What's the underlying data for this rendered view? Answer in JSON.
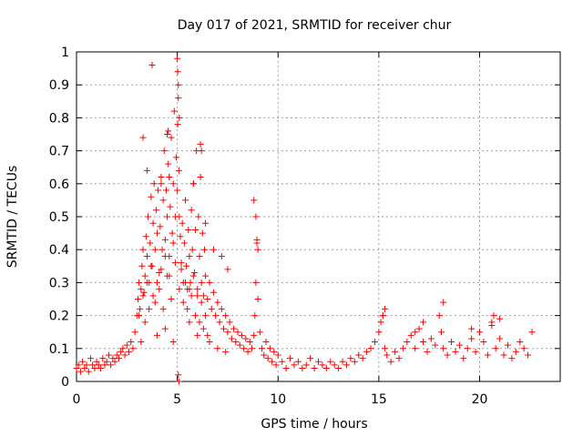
{
  "chart_data": {
    "type": "scatter",
    "title": "Day 017 of 2021, SRMTID for receiver chur",
    "xlabel": "GPS time / hours",
    "ylabel": "SRMTID / TECUs",
    "xlim": [
      0,
      24
    ],
    "ylim": [
      0,
      1
    ],
    "xticks": [
      0,
      5,
      10,
      15,
      20
    ],
    "xtick_labels": [
      "0",
      "5",
      "10",
      "15",
      "20"
    ],
    "yticks": [
      0,
      0.1,
      0.2,
      0.3,
      0.4,
      0.5,
      0.6,
      0.7,
      0.8,
      0.9,
      1
    ],
    "ytick_labels": [
      "0",
      "0.1",
      "0.2",
      "0.3",
      "0.4",
      "0.5",
      "0.6",
      "0.7",
      "0.8",
      "0.9",
      "1"
    ],
    "grid": true,
    "marker": "plus",
    "color": "#ff0000",
    "series": [
      {
        "name": "SRMTID",
        "x": [
          0.0,
          0.1,
          0.2,
          0.3,
          0.4,
          0.5,
          0.6,
          0.7,
          0.8,
          0.9,
          1.0,
          1.1,
          1.2,
          1.3,
          1.4,
          1.5,
          1.6,
          1.7,
          1.8,
          1.9,
          2.0,
          2.1,
          2.2,
          2.3,
          2.4,
          2.5,
          2.6,
          2.7,
          2.8,
          2.9,
          3.0,
          3.05,
          3.1,
          3.15,
          3.2,
          3.25,
          3.3,
          3.35,
          3.4,
          3.45,
          3.5,
          3.55,
          3.6,
          3.65,
          3.7,
          3.75,
          3.8,
          3.85,
          3.9,
          3.95,
          4.0,
          4.05,
          4.1,
          4.15,
          4.2,
          4.25,
          4.3,
          4.35,
          4.4,
          4.45,
          4.5,
          4.55,
          4.6,
          4.65,
          4.7,
          4.75,
          4.8,
          4.85,
          4.9,
          4.95,
          5.0,
          5.02,
          5.05,
          5.08,
          5.1,
          5.15,
          5.2,
          5.25,
          5.3,
          5.35,
          5.4,
          5.45,
          5.5,
          5.55,
          5.6,
          5.65,
          5.7,
          5.75,
          5.8,
          5.85,
          5.9,
          5.95,
          6.0,
          6.05,
          6.1,
          6.15,
          6.2,
          6.25,
          6.3,
          6.35,
          6.4,
          6.5,
          6.6,
          6.7,
          6.8,
          6.9,
          7.0,
          7.1,
          7.2,
          7.3,
          7.4,
          7.5,
          7.6,
          7.7,
          7.8,
          7.9,
          8.0,
          8.1,
          8.2,
          8.3,
          8.4,
          8.5,
          8.6,
          8.7,
          8.8,
          8.85,
          8.9,
          8.95,
          9.0,
          9.1,
          9.2,
          9.3,
          9.4,
          9.5,
          9.6,
          9.7,
          9.8,
          9.9,
          10.0,
          10.2,
          10.4,
          10.6,
          10.8,
          11.0,
          11.2,
          11.4,
          11.6,
          11.8,
          12.0,
          12.2,
          12.4,
          12.6,
          12.8,
          13.0,
          13.2,
          13.4,
          13.6,
          13.8,
          14.0,
          14.2,
          14.4,
          14.6,
          14.8,
          15.0,
          15.1,
          15.2,
          15.3,
          15.4,
          15.6,
          15.8,
          16.0,
          16.2,
          16.4,
          16.6,
          16.8,
          17.0,
          17.2,
          17.4,
          17.6,
          17.8,
          18.0,
          18.1,
          18.2,
          18.4,
          18.6,
          18.8,
          19.0,
          19.2,
          19.4,
          19.6,
          19.8,
          20.0,
          20.2,
          20.4,
          20.6,
          20.8,
          21.0,
          21.2,
          21.4,
          21.6,
          21.8,
          22.0,
          22.2,
          22.4,
          22.6,
          3.1,
          3.3,
          3.5,
          3.7,
          3.9,
          4.1,
          4.3,
          4.5,
          4.7,
          4.9,
          5.1,
          5.3,
          5.5,
          5.7,
          5.9,
          6.1,
          6.3,
          6.5,
          3.2,
          3.4,
          3.6,
          3.8,
          4.0,
          4.2,
          4.4,
          4.6,
          4.8,
          5.2,
          5.4,
          5.6,
          5.8,
          6.0,
          6.2,
          6.4,
          3.75,
          4.5,
          4.55,
          4.6,
          5.0,
          5.02,
          5.05,
          5.1,
          6.15,
          6.2,
          3.3,
          3.5,
          4.2,
          4.6,
          5.8,
          6.4,
          6.8,
          7.2,
          7.5,
          8.8,
          8.9,
          8.95,
          9.0,
          4.0,
          4.4,
          4.8,
          5.6,
          6.0,
          6.6,
          7.0,
          7.4,
          5.05,
          5.08,
          15.2,
          15.3,
          18.2,
          20.6,
          20.7,
          21.0,
          16.8,
          17.2,
          19.6
        ],
        "y": [
          0.04,
          0.05,
          0.03,
          0.06,
          0.04,
          0.05,
          0.03,
          0.07,
          0.05,
          0.04,
          0.06,
          0.05,
          0.04,
          0.07,
          0.05,
          0.06,
          0.08,
          0.05,
          0.07,
          0.06,
          0.08,
          0.07,
          0.09,
          0.1,
          0.08,
          0.11,
          0.09,
          0.12,
          0.1,
          0.15,
          0.2,
          0.25,
          0.3,
          0.22,
          0.28,
          0.35,
          0.4,
          0.27,
          0.32,
          0.44,
          0.38,
          0.5,
          0.3,
          0.42,
          0.56,
          0.35,
          0.48,
          0.6,
          0.4,
          0.52,
          0.45,
          0.58,
          0.33,
          0.47,
          0.62,
          0.4,
          0.55,
          0.7,
          0.43,
          0.58,
          0.5,
          0.66,
          0.38,
          0.53,
          0.74,
          0.45,
          0.6,
          0.82,
          0.5,
          0.68,
          0.58,
          0.78,
          0.9,
          0.64,
          0.5,
          0.44,
          0.36,
          0.48,
          0.3,
          0.42,
          0.55,
          0.35,
          0.28,
          0.46,
          0.38,
          0.3,
          0.52,
          0.4,
          0.6,
          0.33,
          0.46,
          0.7,
          0.28,
          0.5,
          0.38,
          0.62,
          0.3,
          0.45,
          0.26,
          0.4,
          0.32,
          0.25,
          0.3,
          0.22,
          0.27,
          0.2,
          0.24,
          0.18,
          0.22,
          0.16,
          0.2,
          0.15,
          0.18,
          0.13,
          0.16,
          0.12,
          0.15,
          0.11,
          0.14,
          0.1,
          0.13,
          0.09,
          0.12,
          0.1,
          0.14,
          0.2,
          0.3,
          0.42,
          0.25,
          0.15,
          0.1,
          0.08,
          0.12,
          0.07,
          0.1,
          0.06,
          0.09,
          0.05,
          0.08,
          0.06,
          0.04,
          0.07,
          0.05,
          0.06,
          0.04,
          0.05,
          0.07,
          0.04,
          0.06,
          0.05,
          0.04,
          0.06,
          0.05,
          0.04,
          0.06,
          0.05,
          0.07,
          0.06,
          0.08,
          0.07,
          0.09,
          0.1,
          0.12,
          0.15,
          0.18,
          0.2,
          0.1,
          0.08,
          0.06,
          0.09,
          0.07,
          0.1,
          0.12,
          0.14,
          0.1,
          0.16,
          0.12,
          0.09,
          0.13,
          0.11,
          0.2,
          0.15,
          0.1,
          0.08,
          0.12,
          0.09,
          0.11,
          0.07,
          0.1,
          0.13,
          0.09,
          0.15,
          0.12,
          0.08,
          0.17,
          0.1,
          0.13,
          0.08,
          0.11,
          0.07,
          0.09,
          0.12,
          0.1,
          0.08,
          0.15,
          0.2,
          0.26,
          0.3,
          0.35,
          0.24,
          0.28,
          0.22,
          0.32,
          0.25,
          0.36,
          0.28,
          0.24,
          0.22,
          0.26,
          0.2,
          0.18,
          0.16,
          0.14,
          0.12,
          0.18,
          0.22,
          0.26,
          0.3,
          0.34,
          0.38,
          0.32,
          0.42,
          0.34,
          0.3,
          0.28,
          0.32,
          0.26,
          0.24,
          0.2,
          0.96,
          0.75,
          0.76,
          0.62,
          0.98,
          0.94,
          0.86,
          0.8,
          0.72,
          0.7,
          0.74,
          0.64,
          0.6,
          0.62,
          0.6,
          0.48,
          0.4,
          0.38,
          0.34,
          0.55,
          0.5,
          0.43,
          0.4,
          0.14,
          0.16,
          0.12,
          0.18,
          0.14,
          0.12,
          0.1,
          0.09,
          0.02,
          0.0,
          0.2,
          0.22,
          0.24,
          0.18,
          0.2,
          0.19,
          0.15,
          0.18,
          0.16
        ]
      }
    ]
  }
}
